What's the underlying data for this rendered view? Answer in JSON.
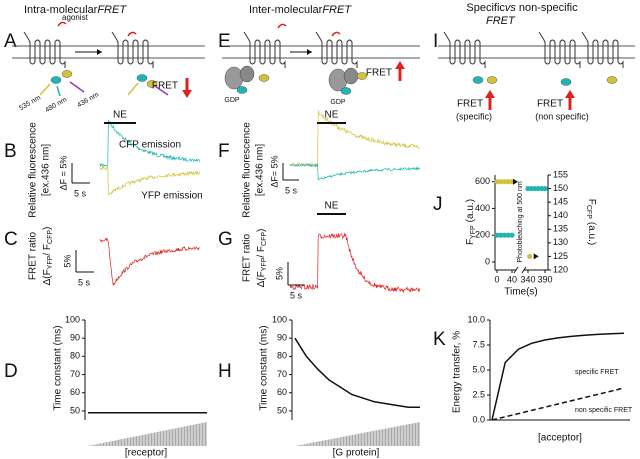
{
  "headings": {
    "left": {
      "text": "Intra-molecular",
      "italic": "FRET"
    },
    "middle": {
      "text": "Inter-molecular",
      "italic": "FRET"
    },
    "right": {
      "text": "Specific",
      "vs": "vs",
      "rest": "non-specific",
      "italic": "FRET"
    }
  },
  "letters": [
    "A",
    "B",
    "C",
    "D",
    "E",
    "F",
    "G",
    "H",
    "I",
    "J",
    "K"
  ],
  "panel_a": {
    "agonist": "agonist",
    "wavelengths": [
      "535 nm",
      "480 nm",
      "436 nm"
    ],
    "fret": "FRET"
  },
  "panel_b": {
    "stimulus": "NE",
    "traces": [
      "CFP emission",
      "YFP emission"
    ],
    "ylabel": [
      "Relative fluorescence",
      "[ex.436 nm]"
    ],
    "scale_y": "ΔF = 5%",
    "scale_x": "5 s"
  },
  "panel_c": {
    "ylabel": "FRET ratio",
    "ratio": [
      "Δ(F",
      "YFP",
      "/ F",
      "CFP",
      ")"
    ],
    "scale_y": "5%",
    "scale_x": "5 s"
  },
  "panel_d": {
    "ylabel": "Time constant (ms)",
    "xlabel": "[receptor]",
    "ylim": [
      45,
      100
    ],
    "yticks": [
      50,
      60,
      70,
      80,
      90,
      100
    ],
    "values": [
      49,
      49
    ]
  },
  "panel_e": {
    "gdp": [
      "GDP",
      "GDP"
    ],
    "fret": "FRET"
  },
  "panel_f": {
    "stimulus": "NE",
    "ylabel": [
      "Relative fluorescence",
      "[ex.436 nm]"
    ],
    "scale_y": "ΔF= 5%",
    "scale_x": "5 s"
  },
  "panel_g": {
    "stimulus": "NE",
    "ylabel": "FRET ratio",
    "ratio": [
      "Δ(F",
      "YFP",
      "/ F",
      "CFP",
      ")"
    ],
    "scale_y": "5%",
    "scale_x": "5 s"
  },
  "panel_h": {
    "ylabel": "Time constant (ms)",
    "xlabel": "[G protein]",
    "ylim": [
      45,
      100
    ],
    "yticks": [
      50,
      60,
      70,
      80,
      90,
      100
    ],
    "values": [
      90,
      80,
      73,
      67,
      63,
      59,
      57,
      55,
      54,
      53,
      52,
      52
    ]
  },
  "panel_i": {
    "labels": [
      [
        "FRET",
        "(specific)"
      ],
      [
        "FRET",
        "(non specific)"
      ]
    ]
  },
  "panel_j": {
    "ylabel_left": [
      "F",
      "YFP",
      "(a.u.)"
    ],
    "ylabel_right": [
      "F",
      "CFP",
      "(a.u.)"
    ],
    "annotation": "Photobleaching at 500 nm",
    "xlabel": "Time(s)",
    "xticks": [
      0,
      40,
      340,
      390
    ],
    "ylim": [
      -60,
      650
    ],
    "yticks": [
      0,
      200,
      400,
      600
    ],
    "y2lim": [
      120,
      155
    ],
    "y2ticks": [
      120,
      125,
      130,
      135,
      140,
      145,
      150,
      155
    ],
    "series": [
      {
        "color": "#d4c13a",
        "x": [
          0,
          10,
          20,
          30,
          40
        ],
        "values": [
          600,
          600,
          600,
          600,
          600
        ]
      },
      {
        "color": "#1fb5b5",
        "x": [
          0,
          10,
          20,
          30,
          40
        ],
        "values": [
          200,
          200,
          200,
          200,
          200
        ]
      },
      {
        "color": "#1fb5b5",
        "axis": "y2",
        "x": [
          340,
          350,
          360,
          370,
          380,
          390
        ],
        "values": [
          150,
          150,
          150,
          150,
          150,
          150
        ]
      },
      {
        "color": "#d4c13a",
        "axis": "y2",
        "x": [
          345
        ],
        "values": [
          125
        ]
      }
    ]
  },
  "panel_k": {
    "ylabel": "Energy transfer, %",
    "xlabel": "[acceptor]",
    "ylim": [
      0,
      10
    ],
    "yticks": [
      {
        "value": 0,
        "label": "0.0"
      },
      {
        "value": 2.5,
        "label": "2.5"
      },
      {
        "value": 5,
        "label": "5.0"
      },
      {
        "value": 7.5,
        "label": "7.5"
      },
      {
        "value": 10,
        "label": "10.0"
      }
    ],
    "series": [
      {
        "name": "specific FRET",
        "dashed": false,
        "values": [
          0,
          5.75,
          7.08,
          7.67,
          8.0,
          8.21,
          8.36,
          8.47,
          8.56,
          8.63,
          8.68
        ]
      },
      {
        "name": "non specific FRET",
        "dashed": true,
        "values": [
          0,
          3.2
        ]
      }
    ]
  }
}
